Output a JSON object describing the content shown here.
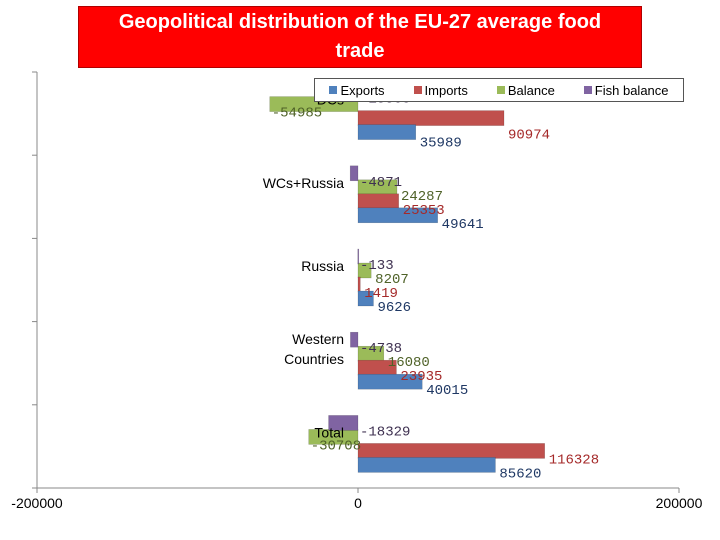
{
  "title": "Geopolitical distribution of the EU-27 average food trade",
  "colors": {
    "Exports": "#4f81bd",
    "Imports": "#c0504d",
    "Balance": "#9bbb59",
    "Fish balance": "#8064a2",
    "title_bg": "#ff0000"
  },
  "chart_data": {
    "type": "bar",
    "orientation": "horizontal",
    "title": "Geopolitical distribution of the EU-27 average food trade",
    "categories": [
      "DCs",
      "WCs+Russia",
      "Russia",
      "Western Countries",
      "Total"
    ],
    "category_labels": [
      "DCs",
      "WCs+Russia",
      "Russia",
      "Western\nCountries",
      "Total"
    ],
    "series": [
      {
        "name": "Exports",
        "values": [
          35989,
          49641,
          9626,
          40015,
          85620
        ]
      },
      {
        "name": "Imports",
        "values": [
          90974,
          25353,
          1419,
          23935,
          116328
        ]
      },
      {
        "name": "Balance",
        "values": [
          -54985,
          24287,
          8207,
          16080,
          -30708
        ]
      },
      {
        "name": "Fish balance",
        "values": [
          -13368,
          -4871,
          -133,
          -4738,
          -18329
        ]
      }
    ],
    "value_labels": [
      [
        "35989",
        "90974",
        "-54985",
        "-13368"
      ],
      [
        "49641",
        "25353",
        "24287",
        "-4871"
      ],
      [
        "9626",
        "1419",
        "8207",
        "-133"
      ],
      [
        "40015",
        "23935",
        "16080",
        "-4738"
      ],
      [
        "85620",
        "116328",
        "-30708",
        "-18329"
      ]
    ],
    "xlim": [
      -200000,
      200000
    ],
    "xticks": [
      "-200000",
      "0",
      "200000"
    ],
    "xlabel": "",
    "ylabel": "",
    "legend_position": "top-right",
    "grid": false
  }
}
